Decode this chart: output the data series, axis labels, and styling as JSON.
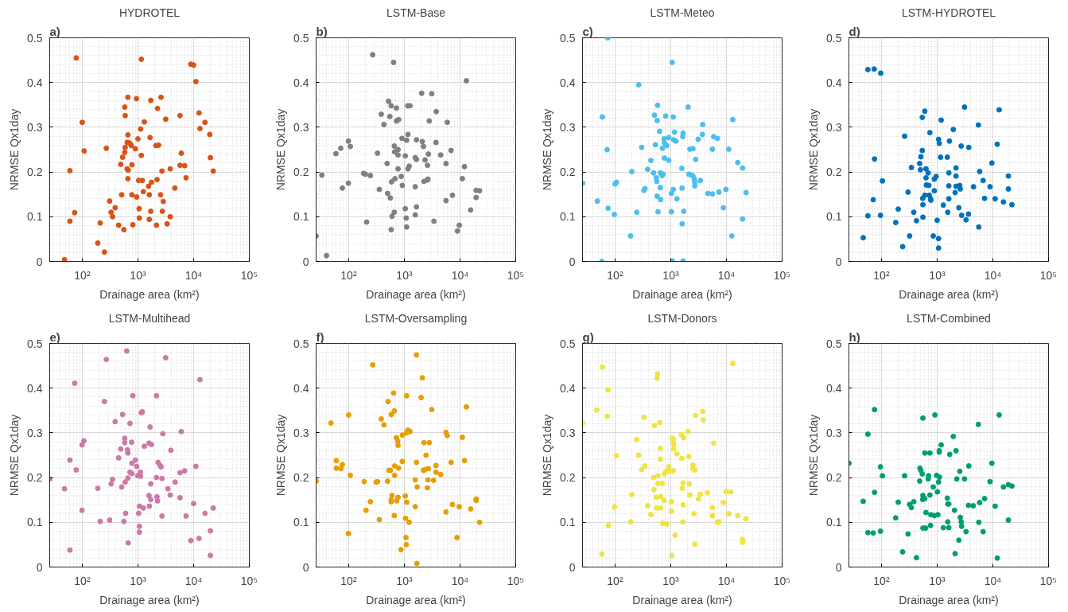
{
  "chart_data": [
    {
      "type": "scatter",
      "title": "HYDROTEL",
      "annotations": [
        "a)"
      ],
      "xlabel": "Drainage area (km²)",
      "ylabel": "NRMSE Qx1day",
      "color": "#d95319",
      "marker": "circle",
      "log": "x",
      "grid": true,
      "xlim": [
        26,
        100000
      ],
      "ylim": [
        0,
        0.5
      ],
      "xticks": [
        {
          "value": 100,
          "label": "10²"
        },
        {
          "value": 1000,
          "label": "10³"
        },
        {
          "value": 10000,
          "label": "10⁴"
        },
        {
          "value": 100000,
          "label": "10⁵"
        }
      ],
      "yticks": [
        0,
        0.1,
        0.2,
        0.3,
        0.4,
        0.5
      ],
      "x": [
        78,
        1150,
        8900,
        10000,
        11000,
        100,
        108,
        60,
        73,
        60,
        48,
        190,
        210,
        250,
        270,
        310,
        330,
        350,
        390,
        450,
        510,
        490,
        530,
        560,
        580,
        590,
        580,
        590,
        640,
        660,
        660,
        670,
        640,
        700,
        740,
        760,
        660,
        780,
        780,
        810,
        900,
        940,
        950,
        1000,
        1030,
        1050,
        1060,
        1120,
        1150,
        1200,
        1250,
        1300,
        1550,
        1600,
        1600,
        1650,
        1700,
        1700,
        1750,
        2100,
        2200,
        2150,
        2250,
        2350,
        2550,
        2600,
        2700,
        2750,
        2850,
        3150,
        3350,
        3800,
        3800,
        4600,
        5700,
        6000,
        5700,
        6900,
        7300,
        12500,
        13000,
        16000,
        19500,
        20000,
        22500
      ],
      "values": [
        0.455,
        0.452,
        0.441,
        0.439,
        0.402,
        0.311,
        0.247,
        0.203,
        0.109,
        0.09,
        0.004,
        0.041,
        0.086,
        0.021,
        0.253,
        0.135,
        0.11,
        0.1,
        0.12,
        0.081,
        0.149,
        0.217,
        0.233,
        0.071,
        0.345,
        0.326,
        0.244,
        0.255,
        0.207,
        0.367,
        0.283,
        0.204,
        0.266,
        0.265,
        0.262,
        0.259,
        0.185,
        0.216,
        0.149,
        0.082,
        0.252,
        0.364,
        0.144,
        0.274,
        0.181,
        0.118,
        0.097,
        0.296,
        0.237,
        0.181,
        0.156,
        0.312,
        0.168,
        0.149,
        0.094,
        0.277,
        0.36,
        0.112,
        0.177,
        0.259,
        0.183,
        0.081,
        0.342,
        0.26,
        0.149,
        0.367,
        0.202,
        0.112,
        0.134,
        0.318,
        0.084,
        0.1,
        0.207,
        0.164,
        0.326,
        0.242,
        0.215,
        0.214,
        0.187,
        0.332,
        0.297,
        0.311,
        0.284,
        0.232,
        0.202
      ]
    },
    {
      "type": "scatter",
      "title": "LSTM-Base",
      "annotations": [
        "b)"
      ],
      "xlabel": "Drainage area (km²)",
      "ylabel": "NRMSE Qx1day",
      "color": "#808080",
      "marker": "circle",
      "log": "x",
      "grid": true,
      "xlim": [
        26,
        100000
      ],
      "ylim": [
        0,
        0.5
      ],
      "xticks": [
        {
          "value": 100,
          "label": "10²"
        },
        {
          "value": 1000,
          "label": "10³"
        },
        {
          "value": 10000,
          "label": "10⁴"
        },
        {
          "value": 100000,
          "label": "10⁵"
        }
      ],
      "yticks": [
        0,
        0.1,
        0.2,
        0.3,
        0.4,
        0.5
      ],
      "x": [
        26,
        40,
        33,
        59,
        72,
        77,
        99,
        107,
        99,
        185,
        200,
        245,
        270,
        210,
        330,
        355,
        385,
        430,
        490,
        500,
        520,
        550,
        560,
        580,
        590,
        600,
        580,
        640,
        660,
        670,
        680,
        660,
        720,
        720,
        790,
        770,
        770,
        770,
        910,
        880,
        920,
        1040,
        1040,
        1080,
        1100,
        1150,
        1260,
        1100,
        1160,
        1160,
        1220,
        1570,
        1650,
        1650,
        1570,
        1650,
        1570,
        2050,
        2100,
        2200,
        2250,
        2350,
        2600,
        2650,
        2600,
        2700,
        2800,
        3100,
        3400,
        3750,
        3700,
        4500,
        5600,
        5600,
        5900,
        6900,
        7300,
        9000,
        9700,
        11000,
        12000,
        13000,
        15500,
        19500,
        19500,
        22500
      ],
      "values": [
        0.057,
        0.013,
        0.193,
        0.241,
        0.253,
        0.164,
        0.269,
        0.257,
        0.175,
        0.197,
        0.195,
        0.192,
        0.462,
        0.088,
        0.242,
        0.161,
        0.329,
        0.306,
        0.219,
        0.152,
        0.358,
        0.324,
        0.142,
        0.348,
        0.178,
        0.101,
        0.071,
        0.445,
        0.258,
        0.245,
        0.185,
        0.11,
        0.343,
        0.314,
        0.317,
        0.25,
        0.238,
        0.207,
        0.275,
        0.19,
        0.17,
        0.236,
        0.118,
        0.097,
        0.077,
        0.348,
        0.348,
        0.271,
        0.284,
        0.207,
        0.213,
        0.232,
        0.272,
        0.228,
        0.167,
        0.122,
        0.104,
        0.376,
        0.268,
        0.257,
        0.179,
        0.227,
        0.182,
        0.184,
        0.215,
        0.24,
        0.314,
        0.375,
        0.09,
        0.335,
        0.266,
        0.238,
        0.219,
        0.136,
        0.311,
        0.248,
        0.148,
        0.068,
        0.081,
        0.185,
        0.212,
        0.404,
        0.115,
        0.159,
        0.143,
        0.158
      ]
    },
    {
      "type": "scatter",
      "title": "LSTM-Meteo",
      "annotations": [
        "c)"
      ],
      "xlabel": "Drainage area (km²)",
      "ylabel": "NRMSE Qx1day",
      "color": "#4dbeee",
      "marker": "circle",
      "log": "x",
      "grid": true,
      "xlim": [
        26,
        100000
      ],
      "ylim": [
        0,
        0.5
      ],
      "xticks": [
        {
          "value": 100,
          "label": "10²"
        },
        {
          "value": 1000,
          "label": "10³"
        },
        {
          "value": 10000,
          "label": "10⁴"
        },
        {
          "value": 100000,
          "label": "10⁵"
        }
      ],
      "yticks": [
        0,
        0.1,
        0.2,
        0.3,
        0.4,
        0.5
      ],
      "x": [
        26,
        74,
        59,
        48,
        58,
        72,
        75,
        97,
        100,
        106,
        190,
        200,
        245,
        265,
        300,
        330,
        345,
        385,
        440,
        490,
        510,
        530,
        550,
        560,
        570,
        580,
        570,
        590,
        630,
        650,
        650,
        660,
        700,
        730,
        710,
        760,
        770,
        770,
        810,
        850,
        920,
        920,
        1030,
        1030,
        1060,
        1070,
        1110,
        1110,
        1130,
        1170,
        1240,
        1290,
        1580,
        1600,
        1600,
        1670,
        1640,
        1670,
        1710,
        2050,
        2120,
        2200,
        2350,
        2500,
        2500,
        2650,
        2700,
        2700,
        2800,
        3100,
        3400,
        3750,
        3700,
        4650,
        5600,
        5600,
        5900,
        6900,
        7300,
        8800,
        9800,
        11000,
        12500,
        13000,
        16000,
        19500,
        19500,
        22500
      ],
      "values": [
        0.175,
        0.5,
        0.323,
        0.135,
        0.0,
        0.25,
        0.119,
        0.105,
        0.173,
        0.177,
        0.057,
        0.201,
        0.11,
        0.395,
        0.255,
        0.159,
        0.163,
        0.206,
        0.226,
        0.198,
        0.327,
        0.261,
        0.187,
        0.179,
        0.146,
        0.349,
        0.315,
        0.111,
        0.291,
        0.198,
        0.165,
        0.138,
        0.192,
        0.195,
        0.253,
        0.274,
        0.265,
        0.231,
        0.325,
        0.259,
        0.277,
        0.226,
        0.111,
        0.152,
        0.445,
        0.001,
        0.323,
        0.161,
        0.272,
        0.289,
        0.269,
        0.14,
        0.208,
        0.164,
        0.084,
        0.287,
        0.279,
        0.001,
        0.112,
        0.345,
        0.195,
        0.251,
        0.193,
        0.252,
        0.191,
        0.184,
        0.177,
        0.169,
        0.228,
        0.273,
        0.181,
        0.306,
        0.284,
        0.152,
        0.151,
        0.251,
        0.279,
        0.275,
        0.155,
        0.12,
        0.161,
        0.251,
        0.057,
        0.317,
        0.221,
        0.209,
        0.095,
        0.154
      ]
    },
    {
      "type": "scatter",
      "title": "LSTM-HYDROTEL",
      "annotations": [
        "d)"
      ],
      "xlabel": "Drainage area (km²)",
      "ylabel": "NRMSE Qx1day",
      "color": "#0072bd",
      "marker": "circle",
      "log": "x",
      "grid": true,
      "xlim": [
        26,
        100000
      ],
      "ylim": [
        0,
        0.5
      ],
      "xticks": [
        {
          "value": 100,
          "label": "10²"
        },
        {
          "value": 1000,
          "label": "10³"
        },
        {
          "value": 10000,
          "label": "10⁴"
        },
        {
          "value": 100000,
          "label": "10⁵"
        }
      ],
      "yticks": [
        0,
        0.1,
        0.2,
        0.3,
        0.4,
        0.5
      ],
      "x": [
        47,
        57,
        74,
        97,
        57,
        71,
        75,
        96,
        104,
        180,
        200,
        240,
        260,
        300,
        320,
        345,
        380,
        425,
        485,
        510,
        500,
        540,
        540,
        550,
        555,
        555,
        600,
        600,
        630,
        630,
        640,
        690,
        710,
        720,
        740,
        760,
        770,
        850,
        890,
        890,
        960,
        1000,
        1060,
        1060,
        1060,
        1090,
        1150,
        1180,
        1290,
        1520,
        1550,
        1620,
        1620,
        1660,
        1620,
        1950,
        2100,
        2180,
        2180,
        2180,
        2450,
        2550,
        2600,
        2700,
        2750,
        3100,
        3300,
        3700,
        3650,
        4500,
        5500,
        5600,
        5800,
        6700,
        7100,
        8900,
        9600,
        11000,
        12000,
        13000,
        15500,
        19000,
        19000,
        22000
      ],
      "values": [
        0.053,
        0.429,
        0.43,
        0.421,
        0.102,
        0.138,
        0.229,
        0.103,
        0.18,
        0.087,
        0.117,
        0.033,
        0.28,
        0.155,
        0.057,
        0.21,
        0.11,
        0.091,
        0.219,
        0.234,
        0.205,
        0.248,
        0.322,
        0.141,
        0.099,
        0.127,
        0.336,
        0.148,
        0.207,
        0.187,
        0.171,
        0.198,
        0.17,
        0.148,
        0.288,
        0.14,
        0.137,
        0.057,
        0.184,
        0.158,
        0.19,
        0.092,
        0.051,
        0.03,
        0.273,
        0.264,
        0.233,
        0.316,
        0.126,
        0.233,
        0.11,
        0.169,
        0.198,
        0.269,
        0.14,
        0.295,
        0.154,
        0.209,
        0.191,
        0.168,
        0.12,
        0.17,
        0.162,
        0.258,
        0.103,
        0.345,
        0.093,
        0.255,
        0.106,
        0.167,
        0.305,
        0.077,
        0.201,
        0.181,
        0.141,
        0.167,
        0.22,
        0.14,
        0.262,
        0.339,
        0.133,
        0.191,
        0.162,
        0.127
      ]
    },
    {
      "type": "scatter",
      "title": "LSTM-Multihead",
      "annotations": [
        "e)"
      ],
      "xlabel": "Drainage area (km²)",
      "ylabel": "NRMSE Qx1day",
      "color": "#cc79a7",
      "marker": "circle",
      "log": "x",
      "grid": true,
      "xlim": [
        26,
        100000
      ],
      "ylim": [
        0,
        0.5
      ],
      "xticks": [
        {
          "value": 100,
          "label": "10²"
        },
        {
          "value": 1000,
          "label": "10³"
        },
        {
          "value": 10000,
          "label": "10⁴"
        },
        {
          "value": 100000,
          "label": "10⁵"
        }
      ],
      "yticks": [
        0,
        0.1,
        0.2,
        0.3,
        0.4,
        0.5
      ],
      "x": [
        26,
        48,
        60,
        60,
        73,
        78,
        99,
        107,
        99,
        190,
        210,
        250,
        270,
        310,
        330,
        350,
        390,
        450,
        490,
        510,
        530,
        560,
        580,
        580,
        590,
        600,
        630,
        650,
        660,
        670,
        660,
        720,
        720,
        780,
        770,
        780,
        810,
        900,
        950,
        990,
        1060,
        1030,
        1060,
        1060,
        1110,
        1110,
        1150,
        1200,
        1250,
        1300,
        1600,
        1580,
        1650,
        1700,
        1700,
        1580,
        1750,
        2150,
        2150,
        2200,
        2250,
        2300,
        2500,
        2600,
        2700,
        2700,
        2800,
        3150,
        3450,
        3800,
        3900,
        4650,
        5700,
        6000,
        5700,
        6900,
        7300,
        8900,
        10000,
        11000,
        12500,
        13000,
        16000,
        20000,
        20000,
        22500
      ],
      "values": [
        0.197,
        0.175,
        0.038,
        0.239,
        0.411,
        0.217,
        0.273,
        0.282,
        0.127,
        0.176,
        0.102,
        0.37,
        0.464,
        0.105,
        0.186,
        0.196,
        0.325,
        0.244,
        0.264,
        0.179,
        0.341,
        0.102,
        0.288,
        0.278,
        0.19,
        0.12,
        0.483,
        0.262,
        0.255,
        0.054,
        0.199,
        0.321,
        0.212,
        0.209,
        0.279,
        0.232,
        0.383,
        0.239,
        0.225,
        0.204,
        0.136,
        0.12,
        0.091,
        0.078,
        0.212,
        0.203,
        0.345,
        0.347,
        0.132,
        0.27,
        0.136,
        0.16,
        0.313,
        0.151,
        0.186,
        0.277,
        0.274,
        0.383,
        0.2,
        0.157,
        0.148,
        0.234,
        0.227,
        0.224,
        0.114,
        0.198,
        0.298,
        0.468,
        0.175,
        0.161,
        0.261,
        0.19,
        0.155,
        0.303,
        0.211,
        0.215,
        0.114,
        0.059,
        0.142,
        0.225,
        0.064,
        0.419,
        0.12,
        0.081,
        0.026,
        0.132
      ]
    },
    {
      "type": "scatter",
      "title": "LSTM-Oversampling",
      "annotations": [
        "f)"
      ],
      "xlabel": "Drainage area (km²)",
      "ylabel": "NRMSE Qx1day",
      "color": "#e69f00",
      "marker": "circle",
      "log": "x",
      "grid": true,
      "xlim": [
        26,
        100000
      ],
      "ylim": [
        0,
        0.5
      ],
      "xticks": [
        {
          "value": 100,
          "label": "10²"
        },
        {
          "value": 1000,
          "label": "10³"
        },
        {
          "value": 10000,
          "label": "10⁴"
        },
        {
          "value": 100000,
          "label": "10⁵"
        }
      ],
      "yticks": [
        0,
        0.1,
        0.2,
        0.3,
        0.4,
        0.5
      ],
      "x": [
        26,
        48,
        60,
        60,
        73,
        77,
        100,
        99,
        107,
        190,
        205,
        245,
        270,
        310,
        330,
        355,
        385,
        430,
        510,
        500,
        530,
        560,
        580,
        580,
        600,
        580,
        640,
        660,
        670,
        660,
        670,
        720,
        760,
        770,
        730,
        790,
        770,
        870,
        920,
        920,
        1040,
        1050,
        1070,
        1080,
        1100,
        1100,
        1100,
        1160,
        1220,
        1260,
        1570,
        1570,
        1650,
        1650,
        1700,
        1680,
        2000,
        2100,
        2200,
        2250,
        2350,
        2450,
        2600,
        2650,
        2700,
        2800,
        3100,
        3350,
        3700,
        3700,
        4500,
        5600,
        5900,
        5600,
        6900,
        7300,
        8800,
        9700,
        11000,
        12000,
        13000,
        15500,
        19500,
        19500,
        22500
      ],
      "values": [
        0.192,
        0.322,
        0.238,
        0.221,
        0.22,
        0.229,
        0.34,
        0.075,
        0.205,
        0.191,
        0.127,
        0.146,
        0.452,
        0.19,
        0.191,
        0.106,
        0.331,
        0.318,
        0.37,
        0.192,
        0.216,
        0.216,
        0.341,
        0.146,
        0.16,
        0.15,
        0.389,
        0.349,
        0.226,
        0.115,
        0.205,
        0.289,
        0.281,
        0.272,
        0.148,
        0.221,
        0.156,
        0.039,
        0.236,
        0.295,
        0.159,
        0.109,
        0.066,
        0.05,
        0.383,
        0.145,
        0.3,
        0.306,
        0.1,
        0.303,
        0.135,
        0.195,
        0.234,
        0.474,
        0.179,
        0.008,
        0.379,
        0.423,
        0.216,
        0.278,
        0.218,
        0.25,
        0.177,
        0.195,
        0.22,
        0.278,
        0.352,
        0.194,
        0.227,
        0.212,
        0.207,
        0.301,
        0.294,
        0.123,
        0.234,
        0.14,
        0.066,
        0.135,
        0.29,
        0.238,
        0.358,
        0.13,
        0.152,
        0.149,
        0.1
      ]
    },
    {
      "type": "scatter",
      "title": "LSTM-Donors",
      "annotations": [
        "g)"
      ],
      "xlabel": "Drainage area (km²)",
      "ylabel": "NRMSE Qx1day",
      "color": "#f0e442",
      "marker": "circle",
      "log": "x",
      "grid": true,
      "xlim": [
        26,
        100000
      ],
      "ylim": [
        0,
        0.5
      ],
      "xticks": [
        {
          "value": 100,
          "label": "10²"
        },
        {
          "value": 1000,
          "label": "10³"
        },
        {
          "value": 10000,
          "label": "10⁴"
        },
        {
          "value": 100000,
          "label": "10⁵"
        }
      ],
      "yticks": [
        0,
        0.1,
        0.2,
        0.3,
        0.4,
        0.5
      ],
      "x": [
        26,
        47,
        59,
        58,
        72,
        75,
        76,
        98,
        106,
        190,
        200,
        245,
        265,
        300,
        330,
        345,
        385,
        440,
        490,
        500,
        510,
        550,
        560,
        580,
        570,
        590,
        590,
        630,
        650,
        650,
        660,
        660,
        710,
        710,
        760,
        770,
        810,
        850,
        920,
        920,
        1030,
        1030,
        1040,
        1070,
        1110,
        1110,
        1130,
        1130,
        1200,
        1290,
        1550,
        1580,
        1600,
        1670,
        1670,
        1650,
        1710,
        2050,
        2120,
        2150,
        2200,
        2500,
        2500,
        2700,
        2600,
        2700,
        2800,
        3150,
        3400,
        3750,
        3800,
        4550,
        5600,
        5600,
        5900,
        6900,
        7300,
        8800,
        9800,
        11000,
        12000,
        13000,
        16000,
        19500,
        19500,
        22500
      ],
      "values": [
        0.321,
        0.351,
        0.447,
        0.029,
        0.337,
        0.396,
        0.093,
        0.134,
        0.249,
        0.101,
        0.162,
        0.285,
        0.25,
        0.218,
        0.335,
        0.226,
        0.137,
        0.117,
        0.2,
        0.173,
        0.316,
        0.156,
        0.132,
        0.432,
        0.422,
        0.204,
        0.187,
        0.323,
        0.265,
        0.241,
        0.158,
        0.132,
        0.187,
        0.098,
        0.149,
        0.208,
        0.213,
        0.096,
        0.224,
        0.215,
        0.146,
        0.125,
        0.026,
        0.288,
        0.285,
        0.215,
        0.275,
        0.264,
        0.071,
        0.253,
        0.296,
        0.243,
        0.176,
        0.188,
        0.139,
        0.101,
        0.289,
        0.303,
        0.247,
        0.186,
        0.161,
        0.22,
        0.228,
        0.217,
        0.119,
        0.051,
        0.339,
        0.152,
        0.163,
        0.348,
        0.329,
        0.166,
        0.133,
        0.115,
        0.277,
        0.1,
        0.101,
        0.144,
        0.168,
        0.119,
        0.168,
        0.455,
        0.115,
        0.062,
        0.055,
        0.108
      ]
    },
    {
      "type": "scatter",
      "title": "LSTM-Combined",
      "annotations": [
        "h)"
      ],
      "xlabel": "Drainage area (km²)",
      "ylabel": "NRMSE Qx1day",
      "color": "#009e73",
      "marker": "circle",
      "log": "x",
      "grid": true,
      "xlim": [
        26,
        100000
      ],
      "ylim": [
        0,
        0.5
      ],
      "xticks": [
        {
          "value": 100,
          "label": "10²"
        },
        {
          "value": 1000,
          "label": "10³"
        },
        {
          "value": 10000,
          "label": "10⁴"
        },
        {
          "value": 100000,
          "label": "10⁵"
        }
      ],
      "yticks": [
        0,
        0.1,
        0.2,
        0.3,
        0.4,
        0.5
      ],
      "x": [
        26,
        47,
        57,
        57,
        71,
        75,
        75,
        96,
        104,
        96,
        180,
        200,
        240,
        260,
        300,
        320,
        345,
        380,
        425,
        485,
        490,
        510,
        540,
        555,
        555,
        550,
        555,
        600,
        600,
        630,
        620,
        690,
        700,
        740,
        740,
        760,
        770,
        850,
        890,
        910,
        980,
        1010,
        1030,
        1060,
        1090,
        1090,
        1100,
        1180,
        1290,
        1520,
        1550,
        1560,
        1620,
        1620,
        1680,
        1950,
        2050,
        2100,
        2180,
        2250,
        2450,
        2550,
        2600,
        2700,
        2750,
        3100,
        3300,
        3700,
        3650,
        4450,
        5500,
        5600,
        5800,
        6700,
        7100,
        8900,
        9600,
        11000,
        12000,
        13000,
        15500,
        19000,
        19000,
        22000
      ],
      "values": [
        0.232,
        0.147,
        0.297,
        0.077,
        0.076,
        0.167,
        0.352,
        0.224,
        0.204,
        0.08,
        0.11,
        0.145,
        0.034,
        0.204,
        0.074,
        0.14,
        0.133,
        0.146,
        0.021,
        0.192,
        0.221,
        0.216,
        0.208,
        0.333,
        0.16,
        0.151,
        0.087,
        0.255,
        0.153,
        0.122,
        0.087,
        0.197,
        0.204,
        0.255,
        0.161,
        0.093,
        0.117,
        0.179,
        0.115,
        0.34,
        0.205,
        0.168,
        0.117,
        0.19,
        0.26,
        0.257,
        0.201,
        0.273,
        0.088,
        0.154,
        0.101,
        0.141,
        0.141,
        0.088,
        0.252,
        0.292,
        0.127,
        0.03,
        0.26,
        0.197,
        0.06,
        0.214,
        0.111,
        0.101,
        0.091,
        0.197,
        0.079,
        0.226,
        0.138,
        0.137,
        0.319,
        0.1,
        0.144,
        0.079,
        0.153,
        0.191,
        0.232,
        0.136,
        0.02,
        0.34,
        0.179,
        0.105,
        0.184,
        0.181
      ]
    }
  ]
}
